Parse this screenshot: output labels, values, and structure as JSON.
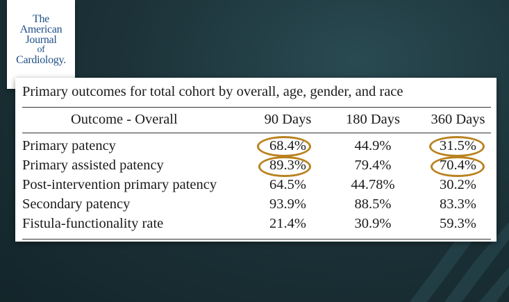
{
  "logo": {
    "line1": "The",
    "line2": "American",
    "line3": "Journal",
    "line4": "of",
    "line5": "Cardiology."
  },
  "table": {
    "title": "Primary outcomes for total cohort by overall, age, gender, and race",
    "headers": [
      "Outcome - Overall",
      "90 Days",
      "180 Days",
      "360 Days"
    ],
    "rows": [
      {
        "outcome": "Primary patency",
        "d90": "68.4%",
        "d180": "44.9%",
        "d360": "31.5%"
      },
      {
        "outcome": "Primary assisted patency",
        "d90": "89.3%",
        "d180": "79.4%",
        "d360": "70.4%"
      },
      {
        "outcome": "Post-intervention primary patency",
        "d90": "64.5%",
        "d180": "44.78%",
        "d360": "30.2%"
      },
      {
        "outcome": "Secondary patency",
        "d90": "93.9%",
        "d180": "88.5%",
        "d360": "83.3%"
      },
      {
        "outcome": "Fistula-functionality rate",
        "d90": "21.4%",
        "d180": "30.9%",
        "d360": "59.3%"
      }
    ]
  },
  "colors": {
    "highlight_ring": "#b98220",
    "logo_text": "#1f4f87",
    "background": "#1c3339"
  }
}
